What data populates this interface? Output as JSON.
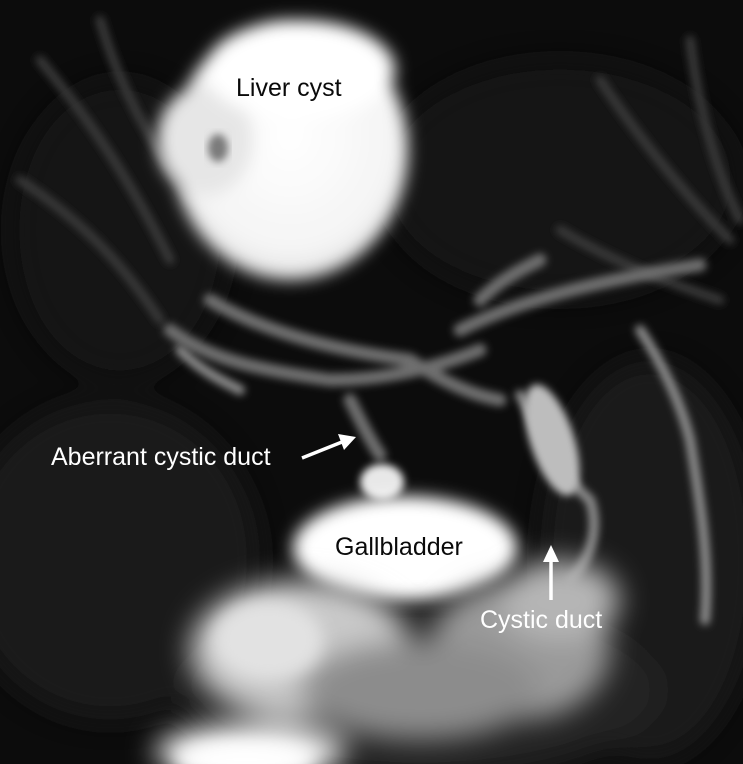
{
  "labels": {
    "liver_cyst": "Liver cyst",
    "aberrant_cystic_duct": "Aberrant cystic duct",
    "gallbladder": "Gallbladder",
    "cystic_duct": "Cystic duct"
  },
  "colors": {
    "background": "#0b0b0b",
    "label_text": "#ffffff",
    "arrow": "#ffffff"
  }
}
